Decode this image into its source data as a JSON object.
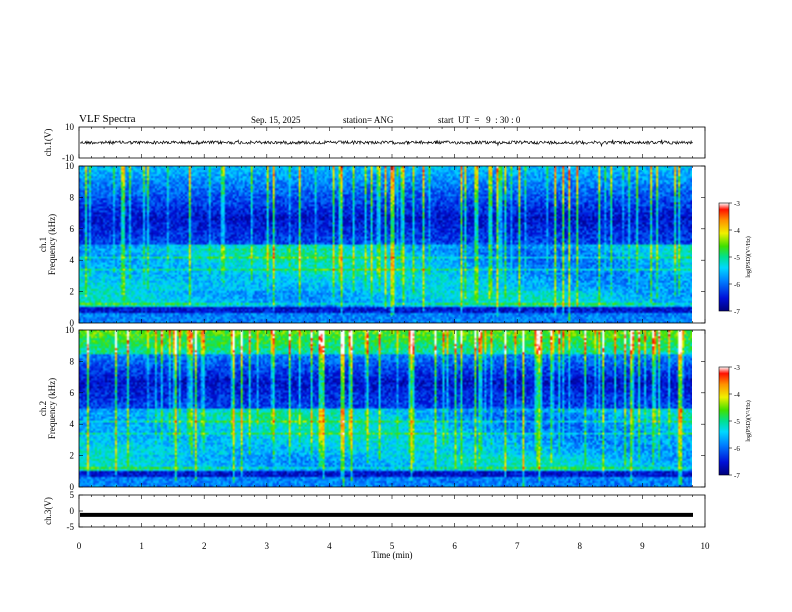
{
  "header": {
    "title": "VLF Spectra",
    "date": "Sep. 15, 2025",
    "station": "station= ANG",
    "start_ut": "start  UT  =   9  : 30 : 0"
  },
  "chart_data": [
    {
      "type": "line",
      "name": "ch1-waveform",
      "ylabel": "ch.1(V)",
      "ylim": [
        -10,
        10
      ],
      "yticks": [
        "10",
        "-10"
      ],
      "xlim": [
        0,
        10
      ],
      "trace_level": 0,
      "note": "continuous noisy waveform near 0 V with small spikes"
    },
    {
      "type": "heatmap",
      "name": "ch1-spectrogram",
      "ylabel": "Frequency (kHz)",
      "channel_label": "ch.1",
      "ylim": [
        0,
        10
      ],
      "yticks": [
        "0",
        "2",
        "4",
        "6",
        "8",
        "10"
      ],
      "xlim": [
        0,
        9.8
      ],
      "colorbar": {
        "label": "log(PSD)(V²/Hz)",
        "ticks": [
          "-3",
          "-4",
          "-5",
          "-6",
          "-7"
        ],
        "range": [
          -7,
          -3
        ]
      }
    },
    {
      "type": "heatmap",
      "name": "ch2-spectrogram",
      "ylabel": "Frequency (kHz)",
      "channel_label": "ch.2",
      "ylim": [
        0,
        10
      ],
      "yticks": [
        "0",
        "2",
        "4",
        "6",
        "8",
        "10"
      ],
      "xlim": [
        0,
        9.8
      ],
      "colorbar": {
        "label": "log(PSD)(V²/Hz)",
        "ticks": [
          "-3",
          "-4",
          "-5",
          "-6",
          "-7"
        ],
        "range": [
          -7,
          -3
        ]
      }
    },
    {
      "type": "line",
      "name": "ch3-trace",
      "ylabel": "ch.3(V)",
      "ylim": [
        -5,
        5
      ],
      "yticks": [
        "5",
        "0",
        "-5"
      ],
      "xlim": [
        0,
        10
      ],
      "trace_level": -1.2,
      "note": "thick flat trace slightly below 0 V"
    }
  ],
  "x_axis": {
    "label": "Time  (min)",
    "ticks": [
      "0",
      "1",
      "2",
      "3",
      "4",
      "5",
      "6",
      "7",
      "8",
      "9",
      "10"
    ],
    "range": [
      0,
      10
    ]
  },
  "colors": {
    "colormap": [
      "#00007a",
      "#0010d8",
      "#0080ff",
      "#00d8ff",
      "#00e090",
      "#40e000",
      "#f0f000",
      "#ff9000",
      "#ff1000",
      "#ffffff"
    ]
  }
}
